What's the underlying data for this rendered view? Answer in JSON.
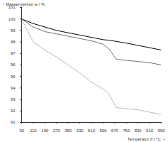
{
  "chart_data": {
    "type": "line",
    "x_label": "Temperatur ϑ / °C",
    "y_label": "Massenverlust w / %",
    "x": [
      30,
      110,
      190,
      270,
      350,
      430,
      510,
      590,
      630,
      680,
      750,
      830,
      910,
      990
    ],
    "series": [
      {
        "color": "#000000",
        "values": [
          100,
          99.6,
          99.3,
          99.0,
          98.8,
          98.6,
          98.4,
          98.2,
          98.15,
          98.05,
          97.9,
          97.7,
          97.5,
          97.3
        ]
      },
      {
        "color": "#707070",
        "values": [
          100,
          99.3,
          98.9,
          98.7,
          98.5,
          98.3,
          98.1,
          97.8,
          97.4,
          96.5,
          96.4,
          96.3,
          96.2,
          96.0
        ]
      },
      {
        "color": "#bbbbbb",
        "values": [
          100,
          98.0,
          97.3,
          96.7,
          96.0,
          95.3,
          94.5,
          93.9,
          93.5,
          92.3,
          92.2,
          92.1,
          91.9,
          91.7
        ]
      }
    ],
    "xlim": [
      30,
      990
    ],
    "xticks": [
      30,
      110,
      190,
      270,
      350,
      430,
      510,
      590,
      670,
      750,
      830,
      910,
      990
    ],
    "ylim": [
      91,
      101
    ],
    "yticks": [
      91,
      92,
      93,
      94,
      95,
      96,
      97,
      98,
      99,
      100,
      101
    ],
    "grid": false
  }
}
